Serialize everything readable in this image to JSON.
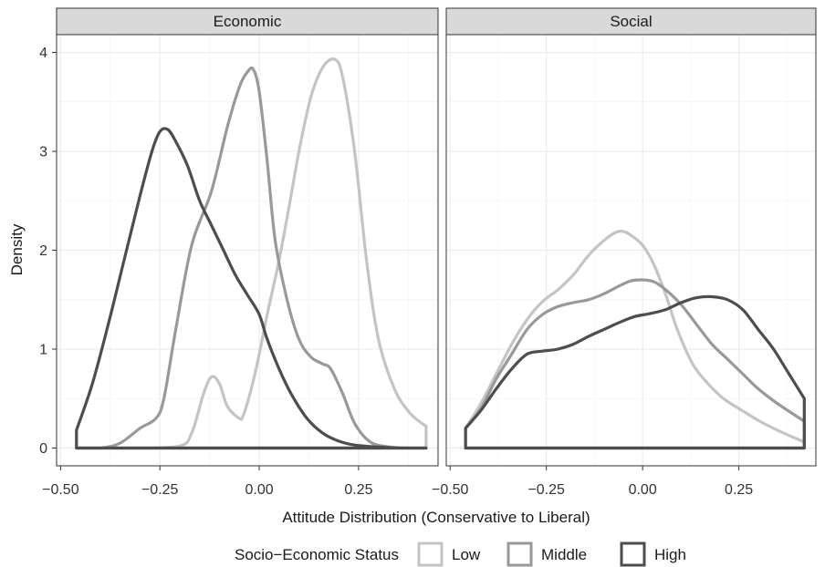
{
  "chart_data": {
    "type": "area",
    "ylabel": "Density",
    "xlabel": "Attitude Distribution (Conservative to Liberal)",
    "xlim": [
      -0.51,
      0.45
    ],
    "ylim": [
      -0.18,
      4.18
    ],
    "x_ticks": [
      -0.5,
      -0.25,
      0.0,
      0.25
    ],
    "x_tick_labels": [
      "−0.50",
      "−0.25",
      "0.00",
      "0.25"
    ],
    "y_ticks": [
      0,
      1,
      2,
      3,
      4
    ],
    "y_tick_labels": [
      "0",
      "1",
      "2",
      "3",
      "4"
    ],
    "grid": true,
    "legend": {
      "title": "Socio−Economic Status",
      "position": "bottom",
      "items": [
        "Low",
        "Middle",
        "High"
      ]
    },
    "colors": {
      "Low": "#c4c4c4",
      "Middle": "#999999",
      "High": "#4d4d4d"
    },
    "panels": [
      {
        "title": "Economic",
        "series": [
          {
            "name": "Low",
            "x": [
              -0.46,
              -0.3,
              -0.2,
              -0.17,
              -0.14,
              -0.12,
              -0.1,
              -0.08,
              -0.05,
              -0.04,
              -0.02,
              0.0,
              0.02,
              0.05,
              0.08,
              0.1,
              0.13,
              0.16,
              0.19,
              0.21,
              0.24,
              0.27,
              0.3,
              0.34,
              0.38,
              0.42
            ],
            "y": [
              0.0,
              0.0,
              0.02,
              0.15,
              0.55,
              0.72,
              0.65,
              0.42,
              0.3,
              0.33,
              0.6,
              0.95,
              1.35,
              1.9,
              2.55,
              3.0,
              3.55,
              3.85,
              3.93,
              3.75,
              3.0,
              1.9,
              1.1,
              0.6,
              0.35,
              0.22
            ]
          },
          {
            "name": "Middle",
            "x": [
              -0.46,
              -0.4,
              -0.35,
              -0.3,
              -0.26,
              -0.24,
              -0.21,
              -0.17,
              -0.12,
              -0.08,
              -0.05,
              -0.03,
              -0.015,
              0.0,
              0.02,
              0.04,
              0.07,
              0.1,
              0.13,
              0.16,
              0.18,
              0.21,
              0.24,
              0.28,
              0.33,
              0.38,
              0.42
            ],
            "y": [
              0.0,
              0.0,
              0.05,
              0.2,
              0.3,
              0.5,
              1.2,
              2.05,
              2.6,
              3.25,
              3.65,
              3.8,
              3.83,
              3.6,
              2.9,
              2.1,
              1.5,
              1.1,
              0.92,
              0.85,
              0.8,
              0.55,
              0.25,
              0.06,
              0.01,
              0.0,
              0.0
            ]
          },
          {
            "name": "High",
            "x": [
              -0.46,
              -0.42,
              -0.38,
              -0.34,
              -0.3,
              -0.27,
              -0.25,
              -0.23,
              -0.21,
              -0.18,
              -0.15,
              -0.12,
              -0.09,
              -0.06,
              -0.03,
              0.0,
              0.02,
              0.05,
              0.08,
              0.12,
              0.16,
              0.2,
              0.24,
              0.3,
              0.36,
              0.42
            ],
            "y": [
              0.18,
              0.65,
              1.25,
              1.9,
              2.55,
              3.0,
              3.2,
              3.22,
              3.1,
              2.85,
              2.5,
              2.25,
              2.0,
              1.75,
              1.55,
              1.35,
              1.1,
              0.8,
              0.55,
              0.3,
              0.15,
              0.07,
              0.03,
              0.01,
              0.0,
              0.0
            ]
          }
        ]
      },
      {
        "title": "Social",
        "series": [
          {
            "name": "Low",
            "x": [
              -0.46,
              -0.42,
              -0.38,
              -0.34,
              -0.3,
              -0.26,
              -0.22,
              -0.18,
              -0.14,
              -0.1,
              -0.07,
              -0.05,
              -0.03,
              0.0,
              0.03,
              0.06,
              0.09,
              0.13,
              0.17,
              0.21,
              0.25,
              0.3,
              0.35,
              0.42
            ],
            "y": [
              0.2,
              0.45,
              0.75,
              1.05,
              1.3,
              1.48,
              1.6,
              1.75,
              1.95,
              2.1,
              2.18,
              2.19,
              2.15,
              2.05,
              1.85,
              1.55,
              1.2,
              0.85,
              0.65,
              0.5,
              0.4,
              0.28,
              0.18,
              0.06
            ]
          },
          {
            "name": "Middle",
            "x": [
              -0.46,
              -0.42,
              -0.38,
              -0.34,
              -0.3,
              -0.26,
              -0.22,
              -0.18,
              -0.14,
              -0.1,
              -0.06,
              -0.03,
              0.0,
              0.03,
              0.06,
              0.1,
              0.14,
              0.18,
              0.22,
              0.26,
              0.3,
              0.35,
              0.42
            ],
            "y": [
              0.2,
              0.4,
              0.7,
              0.95,
              1.2,
              1.35,
              1.43,
              1.47,
              1.5,
              1.56,
              1.64,
              1.69,
              1.7,
              1.68,
              1.6,
              1.45,
              1.25,
              1.05,
              0.9,
              0.75,
              0.6,
              0.45,
              0.27
            ]
          },
          {
            "name": "High",
            "x": [
              -0.46,
              -0.42,
              -0.38,
              -0.34,
              -0.3,
              -0.26,
              -0.22,
              -0.18,
              -0.14,
              -0.1,
              -0.06,
              -0.02,
              0.02,
              0.06,
              0.1,
              0.14,
              0.18,
              0.22,
              0.26,
              0.3,
              0.34,
              0.38,
              0.42
            ],
            "y": [
              0.2,
              0.38,
              0.6,
              0.8,
              0.95,
              0.98,
              1.0,
              1.05,
              1.13,
              1.2,
              1.27,
              1.33,
              1.36,
              1.4,
              1.47,
              1.52,
              1.53,
              1.5,
              1.4,
              1.2,
              1.0,
              0.75,
              0.5
            ]
          }
        ]
      }
    ]
  }
}
